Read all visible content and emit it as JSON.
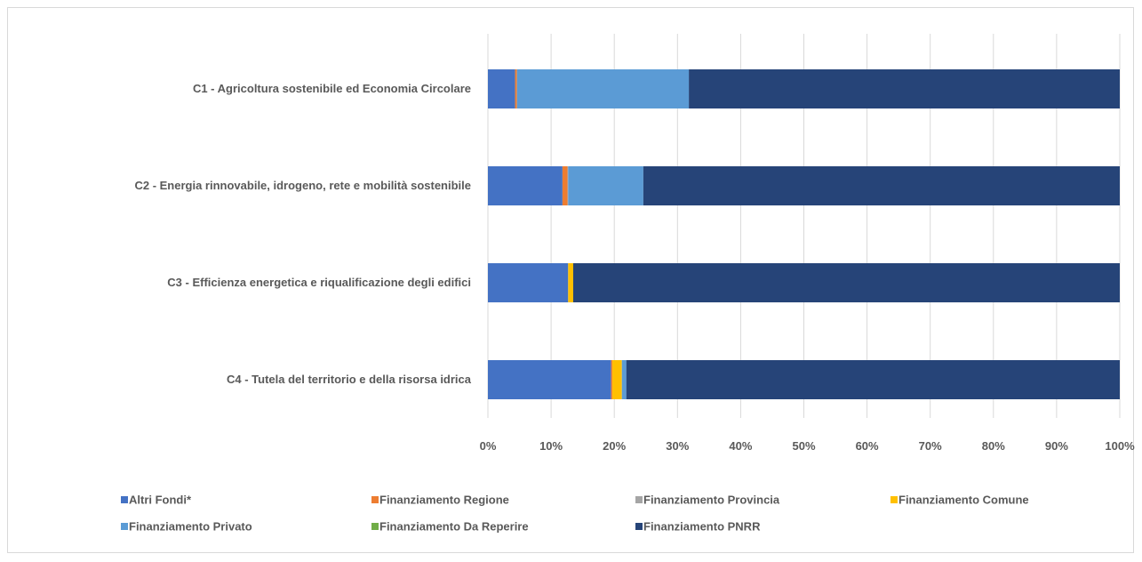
{
  "chart_data": {
    "type": "bar",
    "orientation": "horizontal",
    "stacked": "percent",
    "categories": [
      "C1 - Agricoltura sostenibile ed Economia Circolare",
      "C2 - Energia rinnovabile, idrogeno, rete e mobilità sostenibile",
      "C3 - Efficienza energetica e riqualificazione degli edifici",
      "C4 - Tutela del territorio e della risorsa idrica"
    ],
    "series": [
      {
        "name": "Altri Fondi*",
        "color": "#4472C4",
        "values": [
          4.3,
          11.8,
          12.7,
          19.5
        ]
      },
      {
        "name": "Finanziamento Regione",
        "color": "#ED7D31",
        "values": [
          0.3,
          0.8,
          0.0,
          0.2
        ]
      },
      {
        "name": "Finanziamento Provincia",
        "color": "#A5A5A5",
        "values": [
          0.0,
          0.1,
          0.0,
          0.0
        ]
      },
      {
        "name": "Finanziamento Comune",
        "color": "#FFC000",
        "values": [
          0.0,
          0.0,
          0.8,
          1.5
        ]
      },
      {
        "name": "Finanziamento Privato",
        "color": "#5B9BD5",
        "values": [
          27.2,
          11.9,
          0.0,
          0.7
        ]
      },
      {
        "name": "Finanziamento Da Reperire",
        "color": "#70AD47",
        "values": [
          0.0,
          0.0,
          0.0,
          0.0
        ]
      },
      {
        "name": "Finanziamento PNRR",
        "color": "#264478",
        "values": [
          68.2,
          75.4,
          86.5,
          78.1
        ]
      }
    ],
    "x_ticks": [
      "0%",
      "10%",
      "20%",
      "30%",
      "40%",
      "50%",
      "60%",
      "70%",
      "80%",
      "90%",
      "100%"
    ],
    "xlim": [
      0,
      100
    ],
    "grid": true,
    "legend": "bottom"
  }
}
